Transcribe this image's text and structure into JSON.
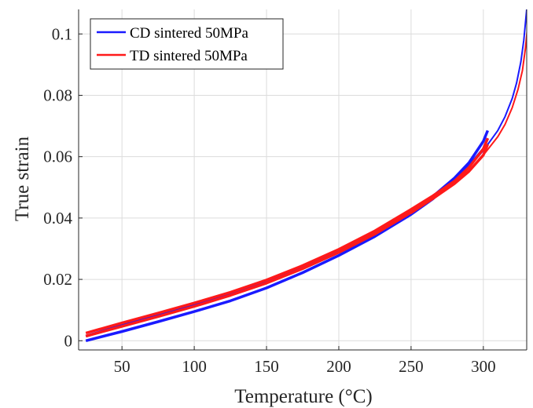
{
  "chart_data": {
    "type": "line",
    "title": "",
    "xlabel": "Temperature (°C)",
    "ylabel": "True strain",
    "xlim": [
      20,
      330
    ],
    "ylim": [
      -0.003,
      0.108
    ],
    "grid": true,
    "legend_position": "top-left",
    "x_ticks": [
      50,
      100,
      150,
      200,
      250,
      300
    ],
    "x_tick_labels": [
      "50",
      "100",
      "150",
      "200",
      "250",
      "300"
    ],
    "y_ticks": [
      0,
      0.02,
      0.04,
      0.06,
      0.08,
      0.1
    ],
    "y_tick_labels": [
      "0",
      "0.02",
      "0.04",
      "0.06",
      "0.08",
      "0.1"
    ],
    "series": [
      {
        "name": "CD sintered 50MPa",
        "color": "#1a1aff",
        "style": "loop",
        "upper": {
          "x": [
            25,
            50,
            75,
            100,
            125,
            150,
            175,
            200,
            225,
            250,
            265,
            280,
            290,
            300,
            303
          ],
          "y": [
            0.0015,
            0.005,
            0.0082,
            0.0115,
            0.015,
            0.0192,
            0.024,
            0.0295,
            0.0355,
            0.0425,
            0.047,
            0.053,
            0.058,
            0.065,
            0.0685
          ]
        },
        "lower": {
          "x": [
            25,
            50,
            75,
            100,
            125,
            150,
            175,
            200,
            225,
            250,
            265,
            280,
            290,
            300,
            303
          ],
          "y": [
            0.0,
            0.003,
            0.0062,
            0.0095,
            0.013,
            0.0172,
            0.0222,
            0.0278,
            0.034,
            0.0412,
            0.0462,
            0.0525,
            0.057,
            0.0625,
            0.066
          ]
        },
        "heating": {
          "x": [
            250,
            270,
            290,
            300,
            310,
            315,
            320,
            323,
            326,
            328,
            330
          ],
          "y": [
            0.0418,
            0.0485,
            0.0565,
            0.062,
            0.0685,
            0.073,
            0.079,
            0.084,
            0.091,
            0.098,
            0.108
          ]
        }
      },
      {
        "name": "TD sintered 50MPa",
        "color": "#ff1a1a",
        "style": "loop",
        "upper": {
          "x": [
            25,
            50,
            75,
            100,
            125,
            150,
            175,
            200,
            225,
            250,
            265,
            280,
            290,
            300,
            303
          ],
          "y": [
            0.0025,
            0.0058,
            0.009,
            0.0123,
            0.0158,
            0.0198,
            0.0245,
            0.0298,
            0.0358,
            0.0428,
            0.0472,
            0.052,
            0.0565,
            0.0625,
            0.066
          ]
        },
        "lower": {
          "x": [
            25,
            50,
            75,
            100,
            125,
            150,
            175,
            200,
            225,
            250,
            265,
            280,
            290,
            300,
            303
          ],
          "y": [
            0.0015,
            0.0047,
            0.0079,
            0.0112,
            0.0148,
            0.0188,
            0.0235,
            0.0288,
            0.0348,
            0.0418,
            0.0463,
            0.0512,
            0.0552,
            0.0605,
            0.064
          ]
        },
        "heating": {
          "x": [
            250,
            270,
            290,
            300,
            310,
            315,
            320,
            324,
            327,
            329,
            331
          ],
          "y": [
            0.0415,
            0.0478,
            0.0555,
            0.0605,
            0.0665,
            0.0705,
            0.076,
            0.082,
            0.088,
            0.095,
            0.104
          ]
        }
      }
    ]
  }
}
